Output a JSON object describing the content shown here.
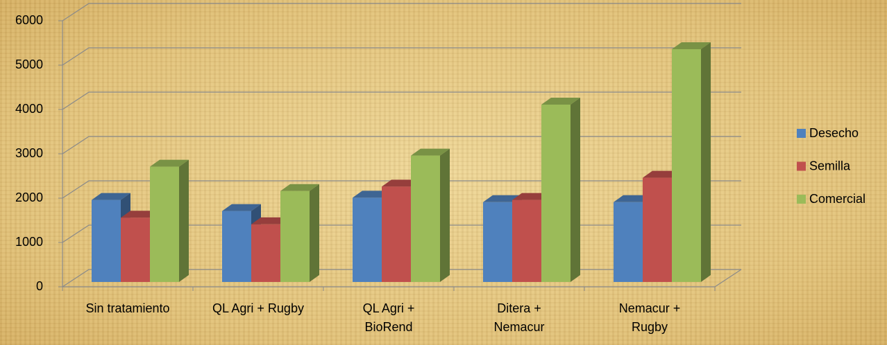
{
  "chart_data": {
    "type": "bar3d",
    "categories": [
      "Sin tratamiento",
      "QL Agri + Rugby",
      "QL Agri + BioRend",
      "Ditera + Nemacur",
      "Nemacur + Rugby"
    ],
    "series": [
      {
        "name": "Desecho",
        "color": "#4f81bd",
        "values": [
          1850,
          1600,
          1900,
          1800,
          1800
        ]
      },
      {
        "name": "Semilla",
        "color": "#c0504d",
        "values": [
          1450,
          1300,
          2150,
          1850,
          2350
        ]
      },
      {
        "name": "Comercial",
        "color": "#9bbb59",
        "values": [
          2600,
          2050,
          2850,
          4000,
          5250
        ]
      }
    ],
    "ylim": [
      0,
      6000
    ],
    "yticks": [
      0,
      1000,
      2000,
      3000,
      4000,
      5000,
      6000
    ],
    "grid": true,
    "legend": "right"
  }
}
